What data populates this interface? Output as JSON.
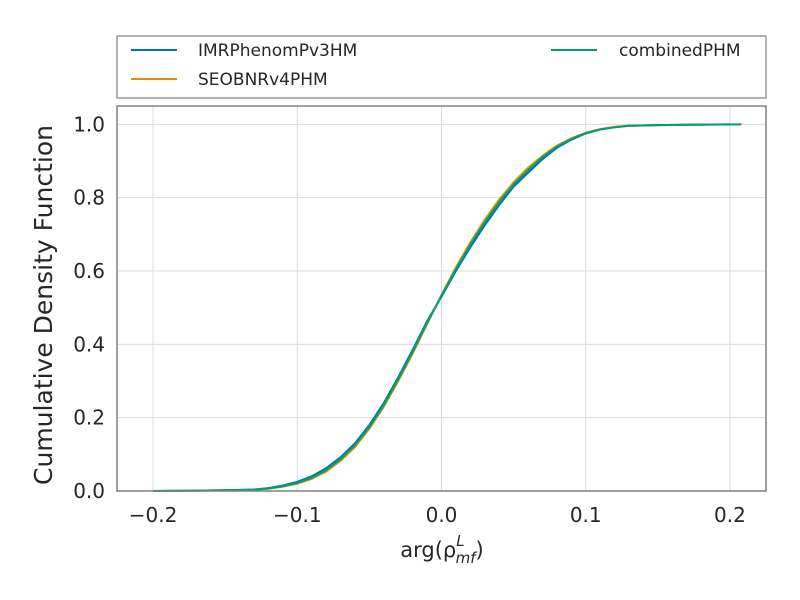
{
  "chart_data": {
    "type": "line",
    "title": "",
    "xlabel": "arg(ρ",
    "xlabel_sup": "L",
    "xlabel_sub": "mf",
    "xlabel_close": ")",
    "ylabel": "Cumulative Density Function",
    "xlim": [
      -0.225,
      0.225
    ],
    "ylim": [
      0.0,
      1.05
    ],
    "xticks": [
      -0.2,
      -0.1,
      0.0,
      0.1,
      0.2
    ],
    "xtick_labels": [
      "−0.2",
      "−0.1",
      "0.0",
      "0.1",
      "0.2"
    ],
    "yticks": [
      0.0,
      0.2,
      0.4,
      0.6,
      0.8,
      1.0
    ],
    "ytick_labels": [
      "0.0",
      "0.2",
      "0.4",
      "0.6",
      "0.8",
      "1.0"
    ],
    "grid": true,
    "legend_position": "top, above plot, two columns",
    "series": [
      {
        "name": "IMRPhenomPv3HM",
        "color": "#0072b2",
        "x": [
          -0.2,
          -0.17,
          -0.15,
          -0.13,
          -0.12,
          -0.11,
          -0.1,
          -0.09,
          -0.08,
          -0.07,
          -0.06,
          -0.05,
          -0.04,
          -0.03,
          -0.02,
          -0.01,
          0.0,
          0.01,
          0.02,
          0.03,
          0.04,
          0.05,
          0.06,
          0.07,
          0.08,
          0.09,
          0.1,
          0.11,
          0.12,
          0.13,
          0.15,
          0.17,
          0.2
        ],
        "y": [
          0.0,
          0.001,
          0.002,
          0.004,
          0.008,
          0.015,
          0.025,
          0.04,
          0.062,
          0.092,
          0.13,
          0.18,
          0.24,
          0.31,
          0.385,
          0.463,
          0.53,
          0.6,
          0.665,
          0.725,
          0.78,
          0.83,
          0.868,
          0.905,
          0.936,
          0.958,
          0.975,
          0.986,
          0.992,
          0.996,
          0.998,
          0.999,
          1.0
        ]
      },
      {
        "name": "SEOBNRv4PHM",
        "color": "#de8f05",
        "x": [
          -0.2,
          -0.17,
          -0.15,
          -0.13,
          -0.12,
          -0.11,
          -0.1,
          -0.09,
          -0.08,
          -0.07,
          -0.06,
          -0.05,
          -0.04,
          -0.03,
          -0.02,
          -0.01,
          0.0,
          0.01,
          0.02,
          0.03,
          0.04,
          0.05,
          0.06,
          0.07,
          0.08,
          0.09,
          0.1,
          0.11,
          0.12,
          0.13,
          0.15,
          0.17,
          0.2
        ],
        "y": [
          0.0,
          0.001,
          0.002,
          0.003,
          0.006,
          0.012,
          0.02,
          0.033,
          0.053,
          0.082,
          0.12,
          0.17,
          0.23,
          0.3,
          0.375,
          0.455,
          0.535,
          0.61,
          0.678,
          0.74,
          0.795,
          0.842,
          0.882,
          0.914,
          0.942,
          0.962,
          0.977,
          0.987,
          0.993,
          0.996,
          0.998,
          0.999,
          1.0
        ]
      },
      {
        "name": "combinedPHM",
        "color": "#029e73",
        "x": [
          -0.2,
          -0.17,
          -0.15,
          -0.13,
          -0.12,
          -0.11,
          -0.1,
          -0.09,
          -0.08,
          -0.07,
          -0.06,
          -0.05,
          -0.04,
          -0.03,
          -0.02,
          -0.01,
          0.0,
          0.01,
          0.02,
          0.03,
          0.04,
          0.05,
          0.06,
          0.07,
          0.08,
          0.09,
          0.1,
          0.11,
          0.12,
          0.13,
          0.15,
          0.17,
          0.208
        ],
        "y": [
          0.0,
          0.001,
          0.002,
          0.0035,
          0.007,
          0.013,
          0.022,
          0.036,
          0.057,
          0.087,
          0.125,
          0.175,
          0.235,
          0.305,
          0.38,
          0.459,
          0.532,
          0.605,
          0.672,
          0.733,
          0.788,
          0.836,
          0.875,
          0.91,
          0.939,
          0.96,
          0.976,
          0.986,
          0.992,
          0.996,
          0.998,
          0.999,
          1.0
        ]
      }
    ]
  }
}
